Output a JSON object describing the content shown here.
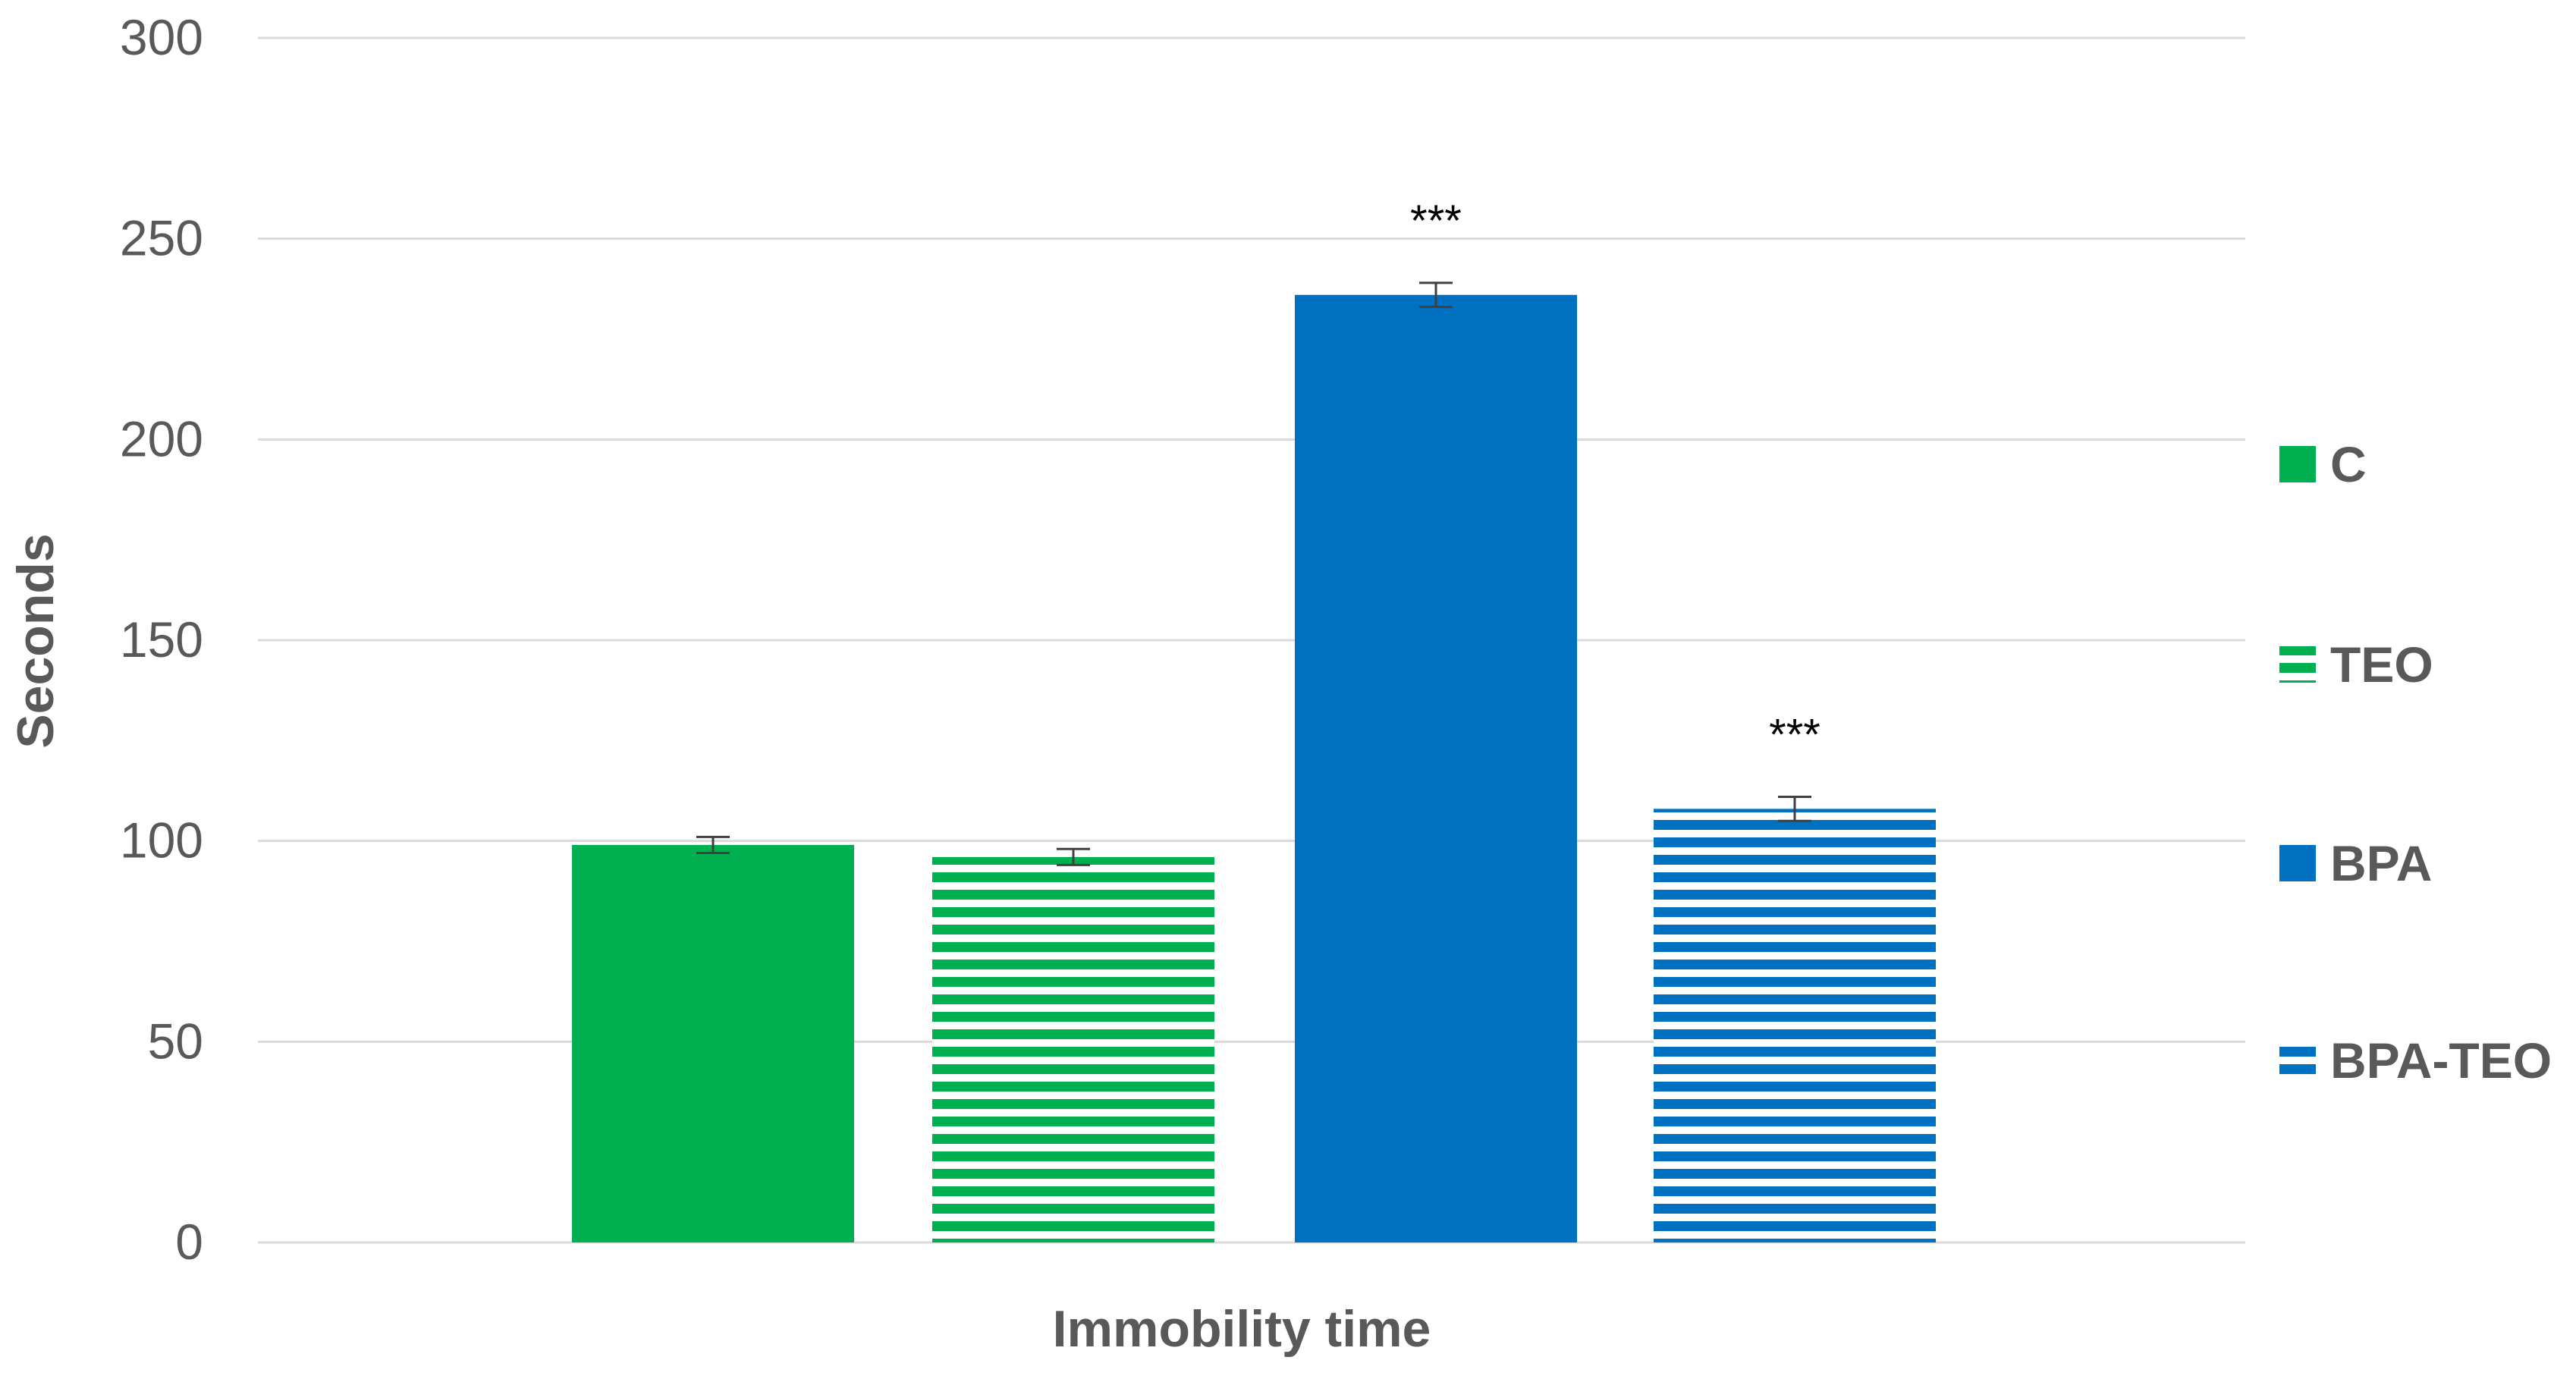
{
  "chart_data": {
    "type": "bar",
    "xlabel": "Immobility time",
    "ylabel": "Seconds",
    "ylim": [
      0,
      300
    ],
    "yticks": [
      0,
      50,
      100,
      150,
      200,
      250,
      300
    ],
    "grid": true,
    "legend_position": "right",
    "categories": [
      "Immobility time"
    ],
    "series": [
      {
        "name": "C",
        "values": [
          99
        ],
        "error": [
          2
        ],
        "color": "#00b050",
        "pattern": "solid",
        "annotation": ""
      },
      {
        "name": "TEO",
        "values": [
          96
        ],
        "error": [
          2
        ],
        "color": "#00b050",
        "pattern": "horizontal-stripes",
        "annotation": ""
      },
      {
        "name": "BPA",
        "values": [
          236
        ],
        "error": [
          3
        ],
        "color": "#0070c0",
        "pattern": "solid",
        "annotation": "***"
      },
      {
        "name": "BPA-TEO",
        "values": [
          108
        ],
        "error": [
          3
        ],
        "color": "#0070c0",
        "pattern": "horizontal-stripes",
        "annotation": "***"
      }
    ]
  }
}
